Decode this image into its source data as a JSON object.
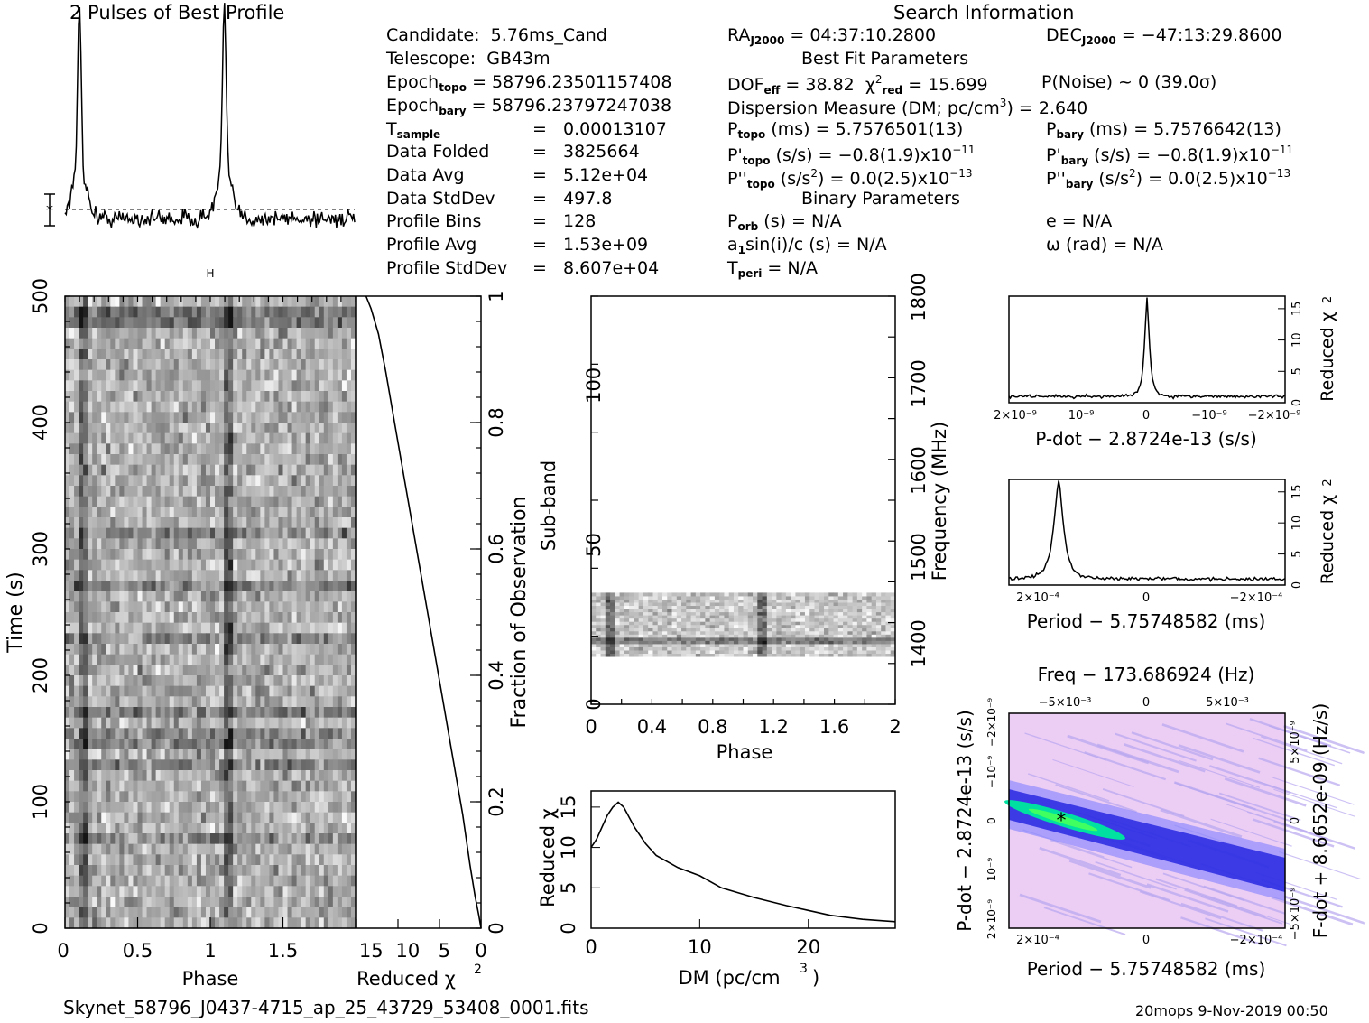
{
  "header": {
    "profile_title": "2 Pulses of Best Profile",
    "search_title": "Search Information",
    "best_fit_title": "Best Fit Parameters",
    "binary_title": "Binary Parameters"
  },
  "left_info": [
    {
      "label": "Candidate:",
      "value": "5.76ms_Cand",
      "sub": ""
    },
    {
      "label": "Telescope:",
      "value": "GB43m",
      "sub": ""
    },
    {
      "label": "Epoch",
      "sub": "topo",
      "value": "= 58796.23501157408"
    },
    {
      "label": "Epoch",
      "sub": "bary",
      "value": "= 58796.23797247038"
    },
    {
      "label": "T",
      "sub": "sample",
      "value": "0.00013107"
    },
    {
      "label": "Data Folded",
      "sub": "",
      "value": "3825664"
    },
    {
      "label": "Data Avg",
      "sub": "",
      "value": "5.12e+04"
    },
    {
      "label": "Data StdDev",
      "sub": "",
      "value": "497.8"
    },
    {
      "label": "Profile Bins",
      "sub": "",
      "value": "128"
    },
    {
      "label": "Profile Avg",
      "sub": "",
      "value": "1.53e+09"
    },
    {
      "label": "Profile StdDev",
      "sub": "",
      "value": "8.607e+04"
    }
  ],
  "mid_info": {
    "ra_label": "RA",
    "ra_sub": "J2000",
    "ra_value": "= 04:37:10.2800",
    "dec_label": "DEC",
    "dec_sub": "J2000",
    "dec_value": "= −47:13:29.8600",
    "dof_label": "DOF",
    "dof_sub": "eff",
    "dof_value": "= 38.82",
    "chi_label": "χ",
    "chi_sub": "red",
    "chi_value": "= 15.699",
    "pnoise": "P(Noise) ~ 0    (39.0σ)",
    "dm_line": "Dispersion Measure (DM; pc/cm",
    "dm_value": ") = 2.640",
    "ptopo_label": "P",
    "ptopo_sub": "topo",
    "ptopo_value": "(ms) =  5.7576501(13)",
    "pbary_label": "P",
    "pbary_sub": "bary",
    "pbary_value": "(ms) =  5.7576642(13)",
    "pdtopo_label": "P'",
    "pdtopo_sub": "topo",
    "pdtopo_value": "(s/s) = −0.8(1.9)x10",
    "pdtopo_exp": "−11",
    "pdbary_label": "P'",
    "pdbary_sub": "bary",
    "pdbary_value": "(s/s) = −0.8(1.9)x10",
    "pdbary_exp": "−11",
    "pddtopo_label": "P''",
    "pddtopo_sub": "topo",
    "pddtopo_value": "(s/s",
    "pddtopo_tail": ") = 0.0(2.5)x10",
    "pddtopo_exp": "−13",
    "pddbary_label": "P''",
    "pddbary_sub": "bary",
    "pddbary_value": "(s/s",
    "pddbary_tail": ") = 0.0(2.5)x10",
    "pddbary_exp": "−13",
    "porb_label": "P",
    "porb_sub": "orb",
    "porb_value": "(s) = N/A",
    "e_value": "e = N/A",
    "asini_label": "a",
    "asini_sub": "1",
    "asini_value": "sin(i)/c (s) = N/A",
    "omega_value": "ω (rad) = N/A",
    "tperi_label": "T",
    "tperi_sub": "peri",
    "tperi_value": "= N/A"
  },
  "footer": {
    "filename": "Skynet_58796_J0437-4715_ap_25_43729_53408_0001.fits",
    "stamp": "20mops  9-Nov-2019 00:50"
  },
  "colors": {
    "ink": "#000000",
    "contour_low": "#e8c8f0",
    "contour_mid": "#4040ff",
    "contour_high": "#00ff80"
  },
  "chart_data": [
    {
      "type": "line",
      "title": "2 Pulses of Best Profile",
      "x": [
        0,
        0.25,
        0.5,
        0.75,
        1.0,
        1.1,
        1.25,
        1.5,
        1.75,
        2.0
      ],
      "peaks_at_phase": [
        0.1,
        1.1
      ],
      "note": "two sharp pulses with noisy baseline"
    },
    {
      "type": "heatmap",
      "xlabel": "Phase",
      "ylabel": "Time (s)",
      "xlim": [
        0,
        2
      ],
      "ylim": [
        0,
        500
      ],
      "x_ticks": [
        "0",
        "0.5",
        "1",
        "1.5"
      ],
      "y_ticks": [
        "0",
        "100",
        "200",
        "300",
        "400",
        "500"
      ]
    },
    {
      "type": "line",
      "xlabel": "Reduced χ",
      "ylabel": "Fraction of Observation",
      "x_ticks": [
        "15",
        "10",
        "5",
        "0"
      ],
      "y_ticks": [
        "0",
        "0.2",
        "0.4",
        "0.6",
        "0.8",
        "1"
      ],
      "x": [
        0,
        0.3,
        0.8,
        1.5,
        2.5,
        4,
        5.5,
        7,
        8.5,
        10,
        11.5,
        13,
        14,
        15,
        15.7
      ],
      "y": [
        0,
        0.02,
        0.05,
        0.1,
        0.18,
        0.28,
        0.38,
        0.48,
        0.58,
        0.68,
        0.78,
        0.88,
        0.94,
        0.98,
        1.0
      ]
    },
    {
      "type": "heatmap",
      "xlabel": "Phase",
      "ylabel": "Sub-band",
      "y2label": "Frequency (MHz)",
      "xlim": [
        0,
        2
      ],
      "ylim": [
        0,
        128
      ],
      "x_ticks": [
        "0",
        "0.4",
        "0.8",
        "1.2",
        "1.6",
        "2"
      ],
      "y_ticks": [
        "0",
        "50",
        "100"
      ],
      "y2_ticks": [
        "1400",
        "1500",
        "1600",
        "1700",
        "1800"
      ],
      "signal_band": [
        15,
        35
      ]
    },
    {
      "type": "line",
      "xlabel": "DM (pc/cm",
      "ylabel": "Reduced χ",
      "xlim": [
        0,
        28
      ],
      "ylim": [
        0,
        17
      ],
      "x_ticks": [
        "0",
        "10",
        "20"
      ],
      "y_ticks": [
        "0",
        "5",
        "10",
        "15"
      ],
      "x": [
        0,
        0.5,
        1,
        1.5,
        2,
        2.5,
        3,
        4,
        5,
        6,
        8,
        10,
        12,
        15,
        18,
        20,
        22,
        25,
        28
      ],
      "y": [
        10,
        11,
        12.5,
        14,
        15,
        15.6,
        15,
        12.5,
        10.5,
        9,
        7.5,
        6.5,
        5,
        3.8,
        2.8,
        2.2,
        1.6,
        1.1,
        0.8
      ]
    },
    {
      "type": "line",
      "xlabel": "P-dot − 2.8724e-13 (s/s)",
      "ylabel": "Reduced χ",
      "x_ticks": [
        "2×10⁻⁹",
        "10⁻⁹",
        "0",
        "−10⁻⁹",
        "−2×10⁻⁹"
      ],
      "y_ticks": [
        "0",
        "5",
        "10",
        "15"
      ],
      "peak_value": 15.7
    },
    {
      "type": "line",
      "xlabel": "Period − 5.75748582 (ms)",
      "ylabel": "Reduced χ",
      "x_ticks": [
        "2×10⁻⁴",
        "0",
        "−2×10⁻⁴"
      ],
      "y_ticks": [
        "0",
        "5",
        "10",
        "15"
      ],
      "peak_value": 15.7
    },
    {
      "type": "heatmap",
      "title": "Freq − 173.686924 (Hz)",
      "xlabel": "Period − 5.75748582 (ms)",
      "ylabel": "P-dot − 2.8724e-13 (s/s)",
      "y2label": "F-dot + 8.6652e-09 (Hz/s)",
      "x_ticks": [
        "2×10⁻⁴",
        "0",
        "−2×10⁻⁴"
      ],
      "top_ticks": [
        "−5×10⁻³",
        "0",
        "5×10⁻³"
      ],
      "y_ticks": [
        "2×10⁻⁹",
        "10⁻⁹",
        "0",
        "−10⁻⁹",
        "−2×10⁻⁹"
      ],
      "y2_ticks": [
        "−5×10⁻⁹",
        "0",
        "5×10⁻⁹"
      ]
    }
  ]
}
